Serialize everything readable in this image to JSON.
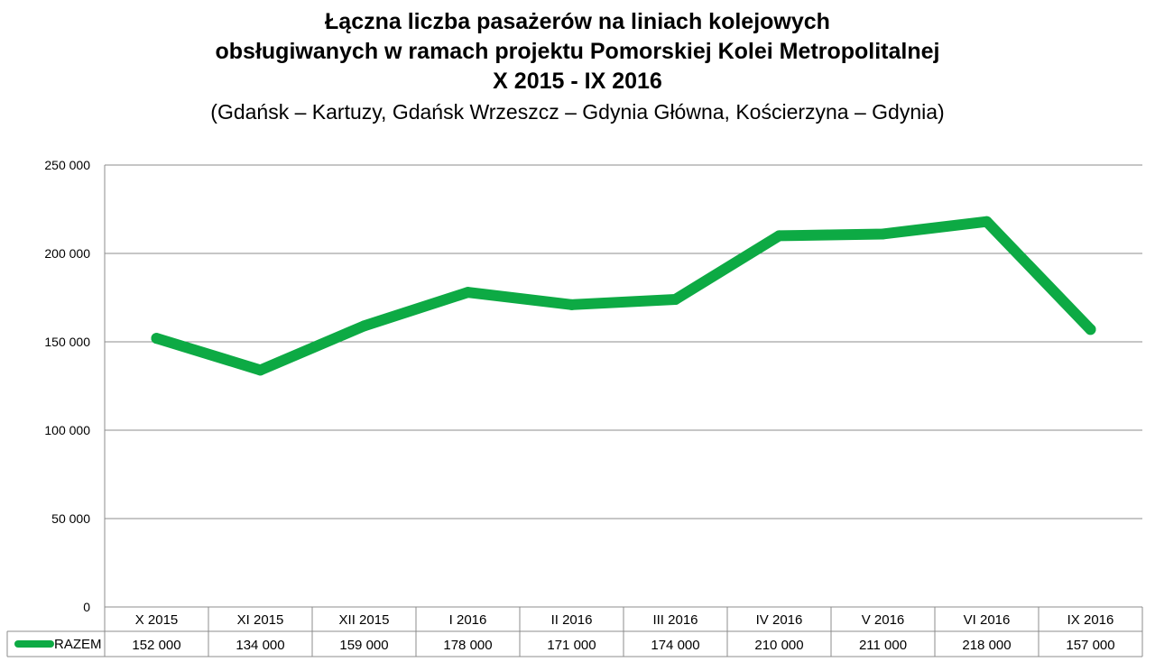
{
  "chart_data": {
    "type": "line",
    "title_lines": [
      "Łączna liczba pasażerów na liniach kolejowych",
      "obsługiwanych w ramach projektu Pomorskiej Kolei Metropolitalnej",
      "X 2015 - IX 2016"
    ],
    "subtitle": "(Gdańsk – Kartuzy, Gdańsk Wrzeszcz – Gdynia Główna, Kościerzyna – Gdynia)",
    "categories": [
      "X 2015",
      "XI 2015",
      "XII 2015",
      "I 2016",
      "II 2016",
      "III 2016",
      "IV 2016",
      "V 2016",
      "VI 2016",
      "IX 2016"
    ],
    "series": [
      {
        "name": "RAZEM",
        "values": [
          152000,
          134000,
          159000,
          178000,
          171000,
          174000,
          210000,
          211000,
          218000,
          157000
        ],
        "value_labels": [
          "152 000",
          "134 000",
          "159 000",
          "178 000",
          "171 000",
          "174 000",
          "210 000",
          "211 000",
          "218 000",
          "157 000"
        ],
        "color": "#0daa44"
      }
    ],
    "ylim": [
      0,
      250000
    ],
    "yticks": [
      0,
      50000,
      100000,
      150000,
      200000,
      250000
    ],
    "ytick_labels": [
      "0",
      "50 000",
      "100 000",
      "150 000",
      "200 000",
      "250 000"
    ],
    "grid": true,
    "legend": "data-table",
    "gridline_color": "#8c8c8c"
  }
}
